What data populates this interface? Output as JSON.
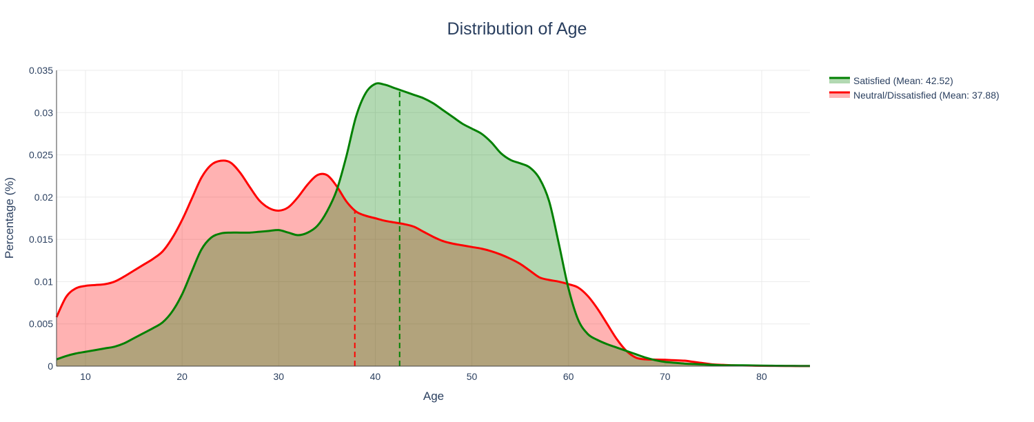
{
  "chart_data": {
    "type": "area",
    "title": "Distribution of Age",
    "xlabel": "Age",
    "ylabel": "Percentage (%)",
    "xlim": [
      7,
      85
    ],
    "ylim": [
      0,
      0.035
    ],
    "x_ticks": [
      10,
      20,
      30,
      40,
      50,
      60,
      70,
      80
    ],
    "x_tick_labels": [
      "10",
      "20",
      "30",
      "40",
      "50",
      "60",
      "70",
      "80"
    ],
    "y_ticks": [
      0,
      0.005,
      0.01,
      0.015,
      0.02,
      0.025,
      0.03,
      0.035
    ],
    "y_tick_labels": [
      "0",
      "0.005",
      "0.01",
      "0.015",
      "0.02",
      "0.025",
      "0.03",
      "0.035"
    ],
    "grid": true,
    "legend_position": "top-right",
    "series": [
      {
        "name": "Satisfied (Mean: 42.52)",
        "line_color": "#008000",
        "fill_color": "rgba(0,128,0,0.3)",
        "mean": 42.52,
        "x": [
          7,
          8,
          9,
          10,
          11,
          12,
          13,
          14,
          15,
          16,
          17,
          18,
          19,
          20,
          21,
          22,
          23,
          24,
          25,
          26,
          27,
          28,
          29,
          30,
          31,
          32,
          33,
          34,
          35,
          36,
          37,
          38,
          39,
          40,
          41,
          42,
          43,
          44,
          45,
          46,
          47,
          48,
          49,
          50,
          51,
          52,
          53,
          54,
          55,
          56,
          57,
          58,
          59,
          60,
          61,
          62,
          63,
          64,
          65,
          66,
          67,
          68,
          69,
          70,
          71,
          72,
          73,
          74,
          75,
          76,
          77,
          78,
          79,
          80,
          81,
          82,
          83,
          84,
          85
        ],
        "y": [
          0.0008,
          0.0012,
          0.0015,
          0.0017,
          0.0019,
          0.0021,
          0.0023,
          0.0027,
          0.0033,
          0.0039,
          0.0045,
          0.0052,
          0.0065,
          0.0085,
          0.0112,
          0.0138,
          0.0152,
          0.0157,
          0.0158,
          0.0158,
          0.0158,
          0.0159,
          0.016,
          0.0161,
          0.0158,
          0.0155,
          0.0158,
          0.0166,
          0.0183,
          0.0208,
          0.0248,
          0.0295,
          0.0323,
          0.0334,
          0.0333,
          0.0329,
          0.0325,
          0.0321,
          0.0317,
          0.0311,
          0.0303,
          0.0295,
          0.0287,
          0.0281,
          0.0275,
          0.0265,
          0.0252,
          0.0244,
          0.024,
          0.0235,
          0.0222,
          0.0195,
          0.0145,
          0.0092,
          0.0055,
          0.0038,
          0.0031,
          0.0026,
          0.0022,
          0.0018,
          0.0014,
          0.001,
          0.0007,
          0.0005,
          0.0004,
          0.0003,
          0.00025,
          0.0002,
          0.00015,
          0.0001,
          0.0001,
          0.0001,
          8e-05,
          6e-05,
          5e-05,
          4e-05,
          3e-05,
          2e-05,
          2e-05
        ]
      },
      {
        "name": "Neutral/Dissatisfied (Mean: 37.88)",
        "line_color": "#ff0000",
        "fill_color": "rgba(255,0,0,0.3)",
        "mean": 37.88,
        "x": [
          7,
          8,
          9,
          10,
          11,
          12,
          13,
          14,
          15,
          16,
          17,
          18,
          19,
          20,
          21,
          22,
          23,
          24,
          25,
          26,
          27,
          28,
          29,
          30,
          31,
          32,
          33,
          34,
          35,
          36,
          37,
          38,
          39,
          40,
          41,
          42,
          43,
          44,
          45,
          46,
          47,
          48,
          49,
          50,
          51,
          52,
          53,
          54,
          55,
          56,
          57,
          58,
          59,
          60,
          61,
          62,
          63,
          64,
          65,
          66,
          67,
          68,
          69,
          70,
          71,
          72,
          73,
          74,
          75,
          76,
          77,
          78,
          79,
          80,
          81,
          82,
          83,
          84,
          85
        ],
        "y": [
          0.0058,
          0.0082,
          0.0092,
          0.0095,
          0.0096,
          0.0097,
          0.01,
          0.0106,
          0.0113,
          0.012,
          0.0127,
          0.0136,
          0.0152,
          0.0173,
          0.0198,
          0.0223,
          0.0238,
          0.0243,
          0.0241,
          0.0229,
          0.0212,
          0.0196,
          0.0187,
          0.0184,
          0.0188,
          0.02,
          0.0215,
          0.0226,
          0.0226,
          0.0213,
          0.0195,
          0.0183,
          0.0178,
          0.0175,
          0.0172,
          0.017,
          0.0168,
          0.0165,
          0.0159,
          0.0153,
          0.0148,
          0.0145,
          0.0143,
          0.0141,
          0.0139,
          0.0136,
          0.0132,
          0.0127,
          0.0121,
          0.0113,
          0.0105,
          0.0102,
          0.01,
          0.0097,
          0.0093,
          0.0083,
          0.0068,
          0.005,
          0.0032,
          0.0018,
          0.001,
          0.0008,
          0.00078,
          0.00075,
          0.0007,
          0.00065,
          0.0005,
          0.00035,
          0.0002,
          0.00015,
          0.0001,
          8e-05,
          6e-05,
          4e-05,
          3e-05,
          2e-05,
          2e-05,
          1e-05,
          1e-05
        ]
      }
    ]
  }
}
